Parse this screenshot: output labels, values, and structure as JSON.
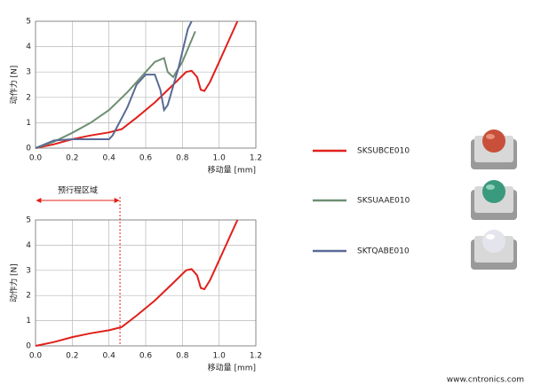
{
  "chart_data": [
    {
      "type": "line",
      "ylabel": "动作力 [N]",
      "xlabel": "移动量 [mm]",
      "xlim": [
        0,
        1.2
      ],
      "ylim": [
        0,
        5
      ],
      "xticks": [
        {
          "value": 0,
          "label": "0.0"
        },
        {
          "value": 0.2,
          "label": "0.2"
        },
        {
          "value": 0.4,
          "label": "0.4"
        },
        {
          "value": 0.6,
          "label": "0.6"
        },
        {
          "value": 0.8,
          "label": "0.8"
        },
        {
          "value": 1,
          "label": "1.0"
        },
        {
          "value": 1.2,
          "label": "1.2"
        }
      ],
      "yticks": [
        0,
        1,
        2,
        3,
        4,
        5
      ],
      "grid": true,
      "series": [
        {
          "name": "SKSUBCE010",
          "color": "#e0201b",
          "x": [
            0,
            0.1,
            0.2,
            0.3,
            0.4,
            0.47,
            0.55,
            0.65,
            0.75,
            0.82,
            0.85,
            0.88,
            0.9,
            0.92,
            0.95,
            1.0,
            1.05,
            1.1
          ],
          "values": [
            0,
            0.15,
            0.35,
            0.5,
            0.62,
            0.75,
            1.2,
            1.8,
            2.5,
            3.0,
            3.05,
            2.8,
            2.3,
            2.25,
            2.6,
            3.4,
            4.2,
            5.0
          ]
        },
        {
          "name": "SKSUAAE010",
          "color": "#6f8f73",
          "x": [
            0,
            0.1,
            0.2,
            0.3,
            0.4,
            0.5,
            0.6,
            0.65,
            0.7,
            0.72,
            0.75,
            0.8,
            0.87
          ],
          "values": [
            0,
            0.25,
            0.6,
            1.0,
            1.5,
            2.2,
            3.0,
            3.4,
            3.55,
            3.0,
            2.8,
            3.4,
            4.6
          ]
        },
        {
          "name": "SKTQABE010",
          "color": "#5a6a95",
          "x": [
            0,
            0.1,
            0.2,
            0.3,
            0.4,
            0.42,
            0.5,
            0.55,
            0.6,
            0.65,
            0.68,
            0.7,
            0.72,
            0.78,
            0.83,
            0.85
          ],
          "values": [
            0,
            0.3,
            0.35,
            0.35,
            0.35,
            0.5,
            1.6,
            2.5,
            2.9,
            2.9,
            2.3,
            1.5,
            1.7,
            3.2,
            4.7,
            5.0
          ]
        }
      ]
    },
    {
      "type": "line",
      "ylabel": "动作力 [N]",
      "xlabel": "移动量 [mm]",
      "xlim": [
        0,
        1.2
      ],
      "ylim": [
        0,
        5
      ],
      "xticks": [
        {
          "value": 0,
          "label": "0.0"
        },
        {
          "value": 0.2,
          "label": "0.2"
        },
        {
          "value": 0.4,
          "label": "0.4"
        },
        {
          "value": 0.6,
          "label": "0.6"
        },
        {
          "value": 0.8,
          "label": "0.8"
        },
        {
          "value": 1,
          "label": "1.0"
        },
        {
          "value": 1.2,
          "label": "1.2"
        }
      ],
      "yticks": [
        0,
        1,
        2,
        3,
        4,
        5
      ],
      "grid": true,
      "annotations": [
        {
          "text": "预行程区域",
          "x": 0.46
        }
      ],
      "series": [
        {
          "color": "#e0201b",
          "x": [
            0,
            0.1,
            0.2,
            0.3,
            0.4,
            0.47,
            0.55,
            0.65,
            0.75,
            0.82,
            0.85,
            0.88,
            0.9,
            0.92,
            0.95,
            1.0,
            1.05,
            1.1
          ],
          "values": [
            0,
            0.15,
            0.35,
            0.5,
            0.62,
            0.75,
            1.2,
            1.8,
            2.5,
            3.0,
            3.05,
            2.8,
            2.3,
            2.25,
            2.6,
            3.4,
            4.2,
            5.0
          ]
        }
      ]
    }
  ],
  "watermark": "www.cntronics.com"
}
